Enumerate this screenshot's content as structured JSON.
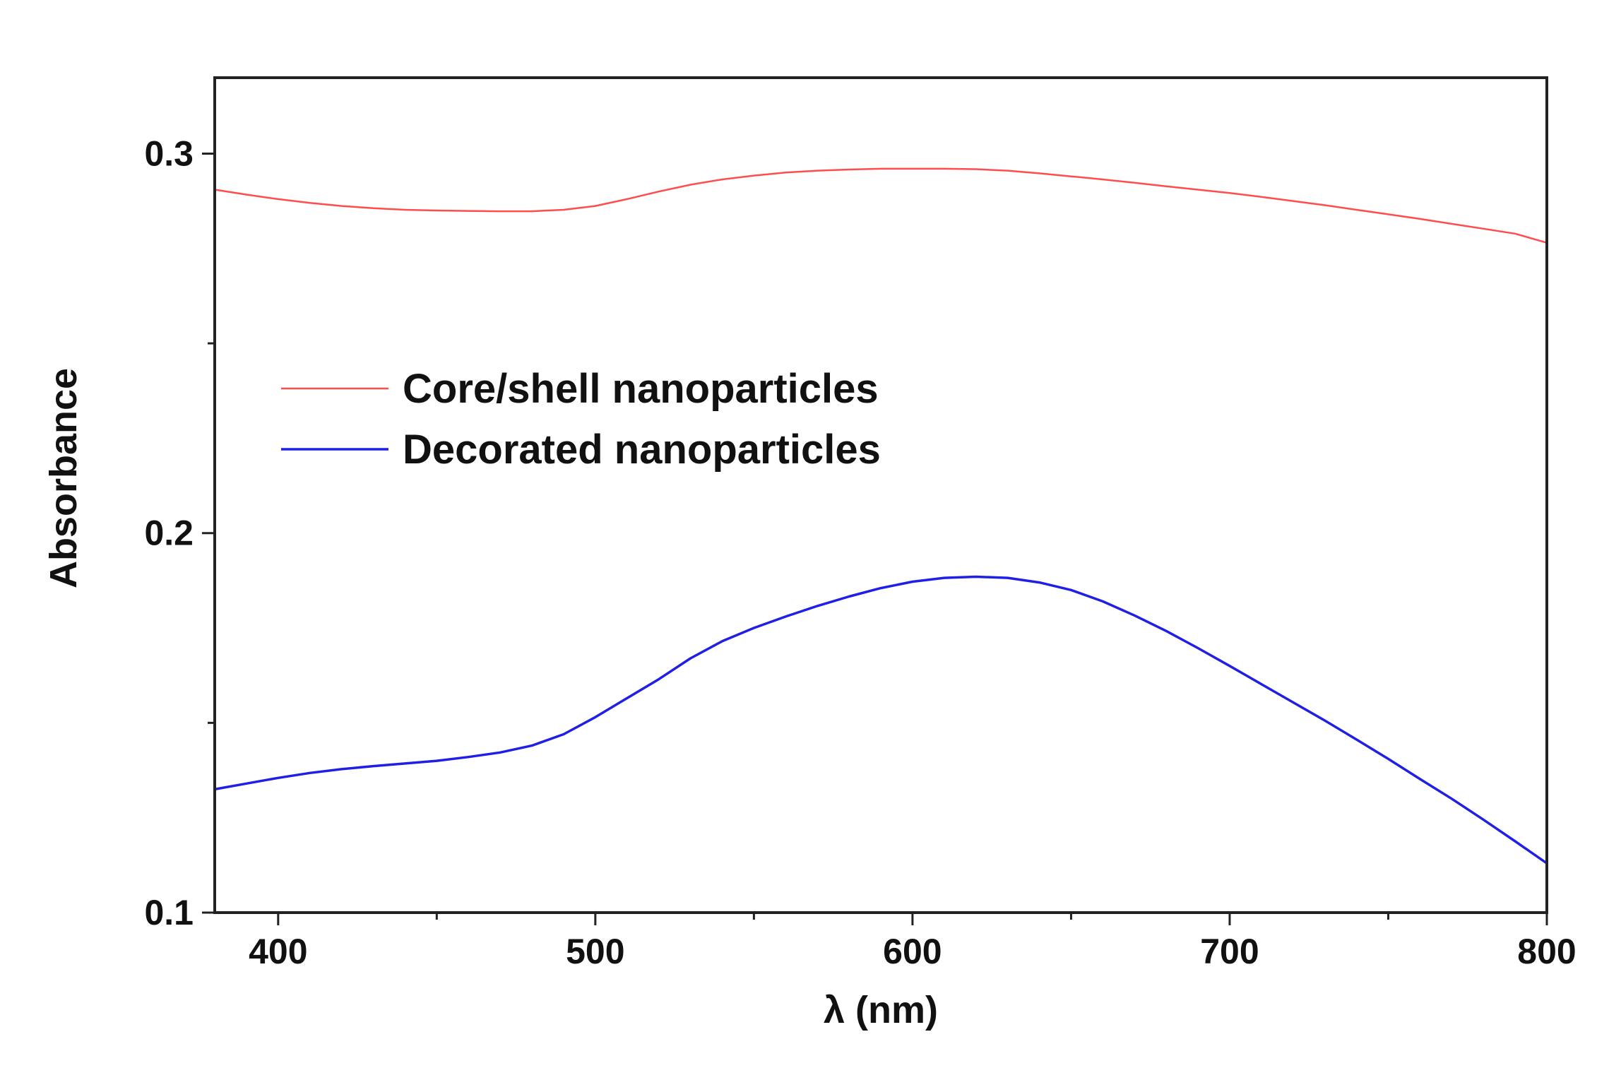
{
  "chart_data": {
    "type": "line",
    "title": "",
    "xlabel": "λ (nm)",
    "ylabel": "Absorbance",
    "xlim": [
      380,
      800
    ],
    "ylim": [
      0.1,
      0.32
    ],
    "x_ticks": [
      {
        "value": 400,
        "label": "400"
      },
      {
        "value": 500,
        "label": "500"
      },
      {
        "value": 600,
        "label": "600"
      },
      {
        "value": 700,
        "label": "700"
      },
      {
        "value": 800,
        "label": "800"
      }
    ],
    "x_minor_ticks": [
      450,
      550,
      650,
      750
    ],
    "y_ticks": [
      {
        "value": 0.1,
        "label": "0.1"
      },
      {
        "value": 0.2,
        "label": "0.2"
      },
      {
        "value": 0.3,
        "label": "0.3"
      }
    ],
    "y_minor_ticks": [
      0.15,
      0.25
    ],
    "grid": false,
    "legend_position": "center-left",
    "series": [
      {
        "name": "Core/shell nanoparticles",
        "color": "#ff4d4d",
        "x": [
          380,
          390,
          400,
          410,
          420,
          430,
          440,
          450,
          460,
          470,
          480,
          490,
          500,
          510,
          520,
          530,
          540,
          550,
          560,
          570,
          580,
          590,
          600,
          610,
          620,
          630,
          640,
          650,
          660,
          670,
          680,
          690,
          700,
          710,
          720,
          730,
          740,
          750,
          760,
          770,
          780,
          790,
          800
        ],
        "y": [
          0.2905,
          0.2892,
          0.288,
          0.287,
          0.2862,
          0.2856,
          0.2852,
          0.285,
          0.2849,
          0.2848,
          0.2848,
          0.2852,
          0.2862,
          0.288,
          0.29,
          0.2918,
          0.2932,
          0.2942,
          0.295,
          0.2955,
          0.2958,
          0.296,
          0.296,
          0.296,
          0.2959,
          0.2955,
          0.2948,
          0.294,
          0.2932,
          0.2923,
          0.2914,
          0.2905,
          0.2896,
          0.2886,
          0.2875,
          0.2864,
          0.2852,
          0.284,
          0.2828,
          0.2815,
          0.2802,
          0.2789,
          0.2765
        ]
      },
      {
        "name": "Decorated nanoparticles",
        "color": "#1f1fe6",
        "x": [
          380,
          390,
          400,
          410,
          420,
          430,
          440,
          450,
          460,
          470,
          480,
          490,
          500,
          510,
          520,
          530,
          540,
          550,
          560,
          570,
          580,
          590,
          600,
          610,
          620,
          630,
          640,
          650,
          660,
          670,
          680,
          690,
          700,
          710,
          720,
          730,
          740,
          750,
          760,
          770,
          780,
          790,
          800
        ],
        "y": [
          0.1325,
          0.134,
          0.1355,
          0.1368,
          0.1378,
          0.1386,
          0.1393,
          0.14,
          0.141,
          0.1422,
          0.144,
          0.147,
          0.1515,
          0.1565,
          0.1615,
          0.167,
          0.1715,
          0.175,
          0.178,
          0.1808,
          0.1833,
          0.1855,
          0.1872,
          0.1882,
          0.1885,
          0.1882,
          0.187,
          0.185,
          0.182,
          0.1783,
          0.1742,
          0.1697,
          0.165,
          0.1602,
          0.1554,
          0.1506,
          0.1456,
          0.1405,
          0.1352,
          0.13,
          0.1245,
          0.1188,
          0.113
        ]
      }
    ]
  }
}
